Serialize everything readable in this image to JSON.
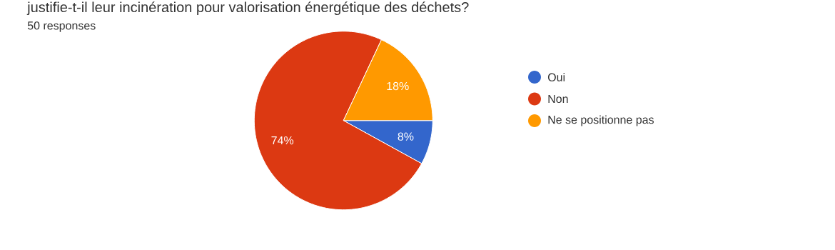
{
  "chart_data": {
    "type": "pie",
    "title": "justifie-t-il leur incinération pour valorisation énergétique des déchets?",
    "subtitle": "50 responses",
    "categories": [
      "Oui",
      "Non",
      "Ne se positionne pas"
    ],
    "values": [
      8,
      74,
      18
    ],
    "colors": [
      "#3366cc",
      "#dc3912",
      "#ff9900"
    ],
    "value_labels": [
      "8%",
      "74%",
      "18%"
    ],
    "legend": "right"
  }
}
